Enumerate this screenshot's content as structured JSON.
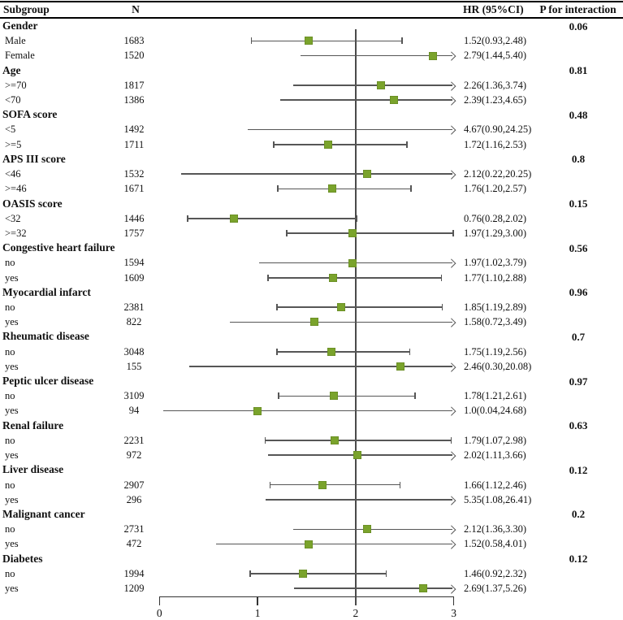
{
  "header": {
    "subgroup": "Subgroup",
    "n": "N",
    "hr": "HR (95%CI)",
    "p": "P for interaction"
  },
  "colors": {
    "marker": "#7aa32c",
    "marker_border": "#5e7f1e",
    "ci_line": "#565656",
    "ref_line": "#4a4a4a",
    "axis": "#333333"
  },
  "chart_data": {
    "type": "forest",
    "x_axis": {
      "ticks": [
        0,
        1,
        2,
        3
      ],
      "min": 0,
      "max": 3,
      "ref_line": 2,
      "grid": false
    },
    "columns": [
      "Subgroup",
      "N",
      "HR (95%CI)",
      "P for interaction"
    ],
    "groups": [
      {
        "label": "Gender",
        "p": "0.06",
        "items": [
          {
            "label": "Male",
            "n": "1683",
            "hr": 1.52,
            "lo": 0.93,
            "hi": 2.48,
            "hr_text": "1.52(0.93,2.48)"
          },
          {
            "label": "Female",
            "n": "1520",
            "hr": 2.79,
            "lo": 1.44,
            "hi": 5.4,
            "hr_text": "2.79(1.44,5.40)"
          }
        ]
      },
      {
        "label": "Age",
        "p": "0.81",
        "items": [
          {
            "label": ">=70",
            "n": "1817",
            "hr": 2.26,
            "lo": 1.36,
            "hi": 3.74,
            "hr_text": "2.26(1.36,3.74)"
          },
          {
            "label": "<70",
            "n": "1386",
            "hr": 2.39,
            "lo": 1.23,
            "hi": 4.65,
            "hr_text": "2.39(1.23,4.65)"
          }
        ]
      },
      {
        "label": "SOFA score",
        "p": "0.48",
        "items": [
          {
            "label": "<5",
            "n": "1492",
            "hr": 4.67,
            "lo": 0.9,
            "hi": 24.25,
            "hr_text": "4.67(0.90,24.25)"
          },
          {
            "label": ">=5",
            "n": "1711",
            "hr": 1.72,
            "lo": 1.16,
            "hi": 2.53,
            "hr_text": "1.72(1.16,2.53)"
          }
        ]
      },
      {
        "label": "APS III score",
        "p": "0.8",
        "items": [
          {
            "label": "<46",
            "n": "1532",
            "hr": 2.12,
            "lo": 0.22,
            "hi": 20.25,
            "hr_text": "2.12(0.22,20.25)"
          },
          {
            "label": ">=46",
            "n": "1671",
            "hr": 1.76,
            "lo": 1.2,
            "hi": 2.57,
            "hr_text": "1.76(1.20,2.57)"
          }
        ]
      },
      {
        "label": "OASIS score",
        "p": "0.15",
        "items": [
          {
            "label": "<32",
            "n": "1446",
            "hr": 0.76,
            "lo": 0.28,
            "hi": 2.02,
            "hr_text": "0.76(0.28,2.02)"
          },
          {
            "label": ">=32",
            "n": "1757",
            "hr": 1.97,
            "lo": 1.29,
            "hi": 3.0,
            "hr_text": "1.97(1.29,3.00)"
          }
        ]
      },
      {
        "label": "Congestive heart failure",
        "p": "0.56",
        "items": [
          {
            "label": "no",
            "n": "1594",
            "hr": 1.97,
            "lo": 1.02,
            "hi": 3.79,
            "hr_text": "1.97(1.02,3.79)"
          },
          {
            "label": "yes",
            "n": "1609",
            "hr": 1.77,
            "lo": 1.1,
            "hi": 2.88,
            "hr_text": "1.77(1.10,2.88)"
          }
        ]
      },
      {
        "label": "Myocardial infarct",
        "p": "0.96",
        "items": [
          {
            "label": "no",
            "n": "2381",
            "hr": 1.85,
            "lo": 1.19,
            "hi": 2.89,
            "hr_text": "1.85(1.19,2.89)"
          },
          {
            "label": "yes",
            "n": "822",
            "hr": 1.58,
            "lo": 0.72,
            "hi": 3.49,
            "hr_text": "1.58(0.72,3.49)"
          }
        ]
      },
      {
        "label": "Rheumatic disease",
        "p": "0.7",
        "items": [
          {
            "label": "no",
            "n": "3048",
            "hr": 1.75,
            "lo": 1.19,
            "hi": 2.56,
            "hr_text": "1.75(1.19,2.56)"
          },
          {
            "label": "yes",
            "n": "155",
            "hr": 2.46,
            "lo": 0.3,
            "hi": 20.08,
            "hr_text": "2.46(0.30,20.08)"
          }
        ]
      },
      {
        "label": "Peptic ulcer disease",
        "p": "0.97",
        "items": [
          {
            "label": "no",
            "n": "3109",
            "hr": 1.78,
            "lo": 1.21,
            "hi": 2.61,
            "hr_text": "1.78(1.21,2.61)"
          },
          {
            "label": "yes",
            "n": "94",
            "hr": 1.0,
            "lo": 0.04,
            "hi": 24.68,
            "hr_text": "1.0(0.04,24.68)"
          }
        ]
      },
      {
        "label": "Renal failure",
        "p": "0.63",
        "items": [
          {
            "label": "no",
            "n": "2231",
            "hr": 1.79,
            "lo": 1.07,
            "hi": 2.98,
            "hr_text": "1.79(1.07,2.98)"
          },
          {
            "label": "yes",
            "n": "972",
            "hr": 2.02,
            "lo": 1.11,
            "hi": 3.66,
            "hr_text": "2.02(1.11,3.66)"
          }
        ]
      },
      {
        "label": "Liver disease",
        "p": "0.12",
        "items": [
          {
            "label": "no",
            "n": "2907",
            "hr": 1.66,
            "lo": 1.12,
            "hi": 2.46,
            "hr_text": "1.66(1.12,2.46)"
          },
          {
            "label": "yes",
            "n": "296",
            "hr": 5.35,
            "lo": 1.08,
            "hi": 26.41,
            "hr_text": "5.35(1.08,26.41)"
          }
        ]
      },
      {
        "label": "Malignant cancer",
        "p": "0.2",
        "items": [
          {
            "label": "no",
            "n": "2731",
            "hr": 2.12,
            "lo": 1.36,
            "hi": 3.3,
            "hr_text": "2.12(1.36,3.30)"
          },
          {
            "label": "yes",
            "n": "472",
            "hr": 1.52,
            "lo": 0.58,
            "hi": 4.01,
            "hr_text": "1.52(0.58,4.01)"
          }
        ]
      },
      {
        "label": "Diabetes",
        "p": "0.12",
        "items": [
          {
            "label": "no",
            "n": "1994",
            "hr": 1.46,
            "lo": 0.92,
            "hi": 2.32,
            "hr_text": "1.46(0.92,2.32)"
          },
          {
            "label": "yes",
            "n": "1209",
            "hr": 2.69,
            "lo": 1.37,
            "hi": 5.26,
            "hr_text": "2.69(1.37,5.26)"
          }
        ]
      }
    ]
  }
}
